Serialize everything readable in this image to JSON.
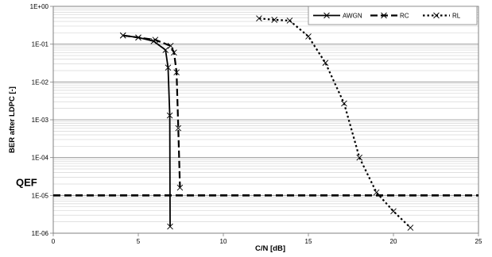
{
  "chart_data": {
    "type": "line",
    "title": "",
    "xlabel": "C/N [dB]",
    "ylabel": "BER after LDPC [-]",
    "x_ticks": [
      "0",
      "5",
      "10",
      "15",
      "20",
      "25"
    ],
    "y_ticks": [
      "1E+00",
      "1E-01",
      "1E-02",
      "1E-03",
      "1E-04",
      "1E-05",
      "1E-06"
    ],
    "xlim": [
      0,
      25
    ],
    "ylim": [
      1e-06,
      1
    ],
    "y_scale": "log",
    "grid": true,
    "legend_position": "top-right",
    "series": [
      {
        "name": "AWGN",
        "line_style": "solid",
        "x": [
          4.1,
          5.0,
          5.9,
          6.6,
          6.75,
          6.85,
          6.87
        ],
        "y": [
          0.17,
          0.15,
          0.12,
          0.07,
          0.024,
          0.0013,
          1.5e-06
        ]
      },
      {
        "name": "RC",
        "line_style": "dash",
        "x": [
          4.1,
          5.0,
          6.0,
          6.9,
          7.1,
          7.25,
          7.35,
          7.45
        ],
        "y": [
          0.17,
          0.15,
          0.13,
          0.09,
          0.06,
          0.018,
          0.0006,
          1.6e-05
        ]
      },
      {
        "name": "RL",
        "line_style": "dot",
        "x": [
          12.1,
          13.0,
          13.9,
          15.0,
          16.0,
          17.1,
          18.0,
          19.0,
          20.0,
          21.0
        ],
        "y": [
          0.48,
          0.44,
          0.42,
          0.16,
          0.032,
          0.0027,
          0.0001,
          1.2e-05,
          3.8e-06,
          1.4e-06
        ]
      }
    ],
    "reference_line": {
      "label": "QEF",
      "y": 1e-05
    }
  }
}
